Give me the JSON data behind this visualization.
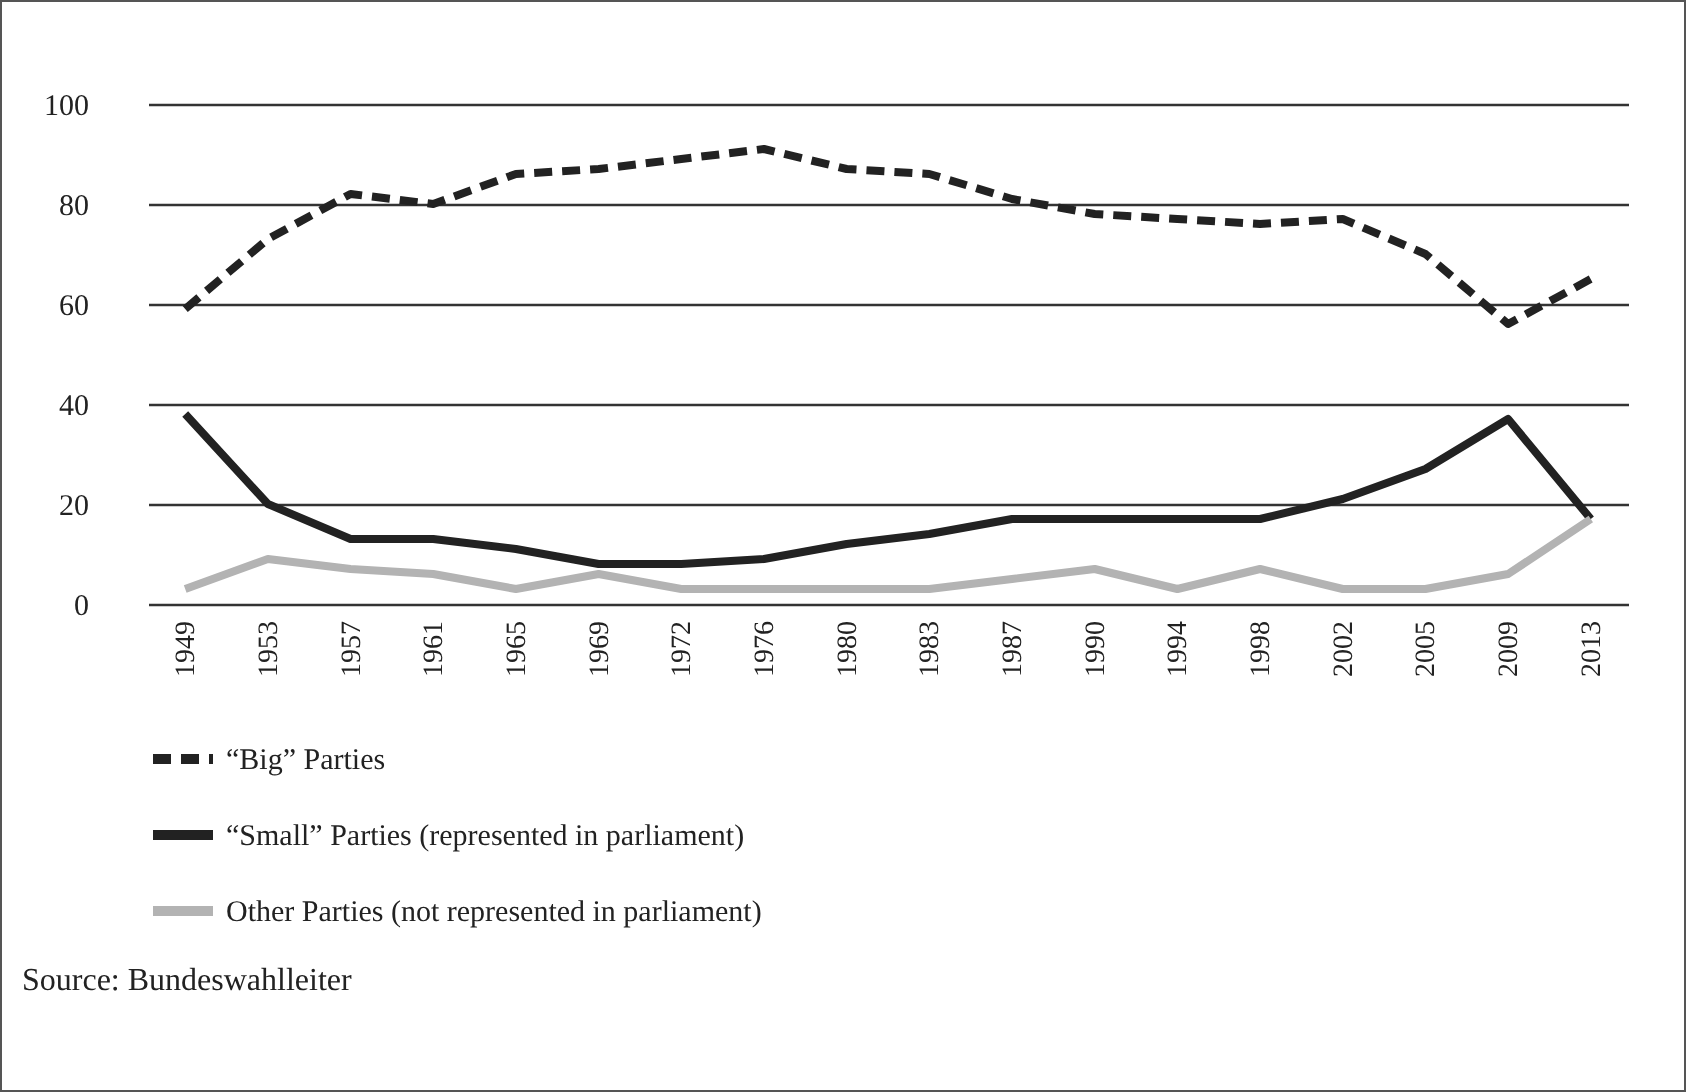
{
  "chart_data": {
    "type": "line",
    "categories": [
      "1949",
      "1953",
      "1957",
      "1961",
      "1965",
      "1969",
      "1972",
      "1976",
      "1980",
      "1983",
      "1987",
      "1990",
      "1994",
      "1998",
      "2002",
      "2005",
      "2009",
      "2013"
    ],
    "series": [
      {
        "name": "“Big”  Parties",
        "color": "#222222",
        "line_style": "dashed",
        "values": [
          59,
          73,
          82,
          80,
          86,
          87,
          89,
          91,
          87,
          86,
          81,
          78,
          77,
          76,
          77,
          70,
          56,
          65
        ]
      },
      {
        "name": "“Small” Parties (represented in parliament)",
        "color": "#222222",
        "line_style": "solid",
        "values": [
          38,
          20,
          13,
          13,
          11,
          8,
          8,
          9,
          12,
          14,
          17,
          17,
          17,
          17,
          21,
          27,
          37,
          17
        ]
      },
      {
        "name": "Other Parties (not represented in parliament)",
        "color": "#b3b3b3",
        "line_style": "solid",
        "values": [
          3,
          9,
          7,
          6,
          3,
          6,
          3,
          3,
          3,
          3,
          5,
          7,
          3,
          7,
          3,
          3,
          6,
          17
        ]
      }
    ],
    "ylim": [
      0,
      100
    ],
    "yticks": [
      0,
      20,
      40,
      60,
      80,
      100
    ],
    "grid": "y",
    "legend": "bottom",
    "annotations": [
      "Source: Bundeswahlleiter"
    ]
  }
}
